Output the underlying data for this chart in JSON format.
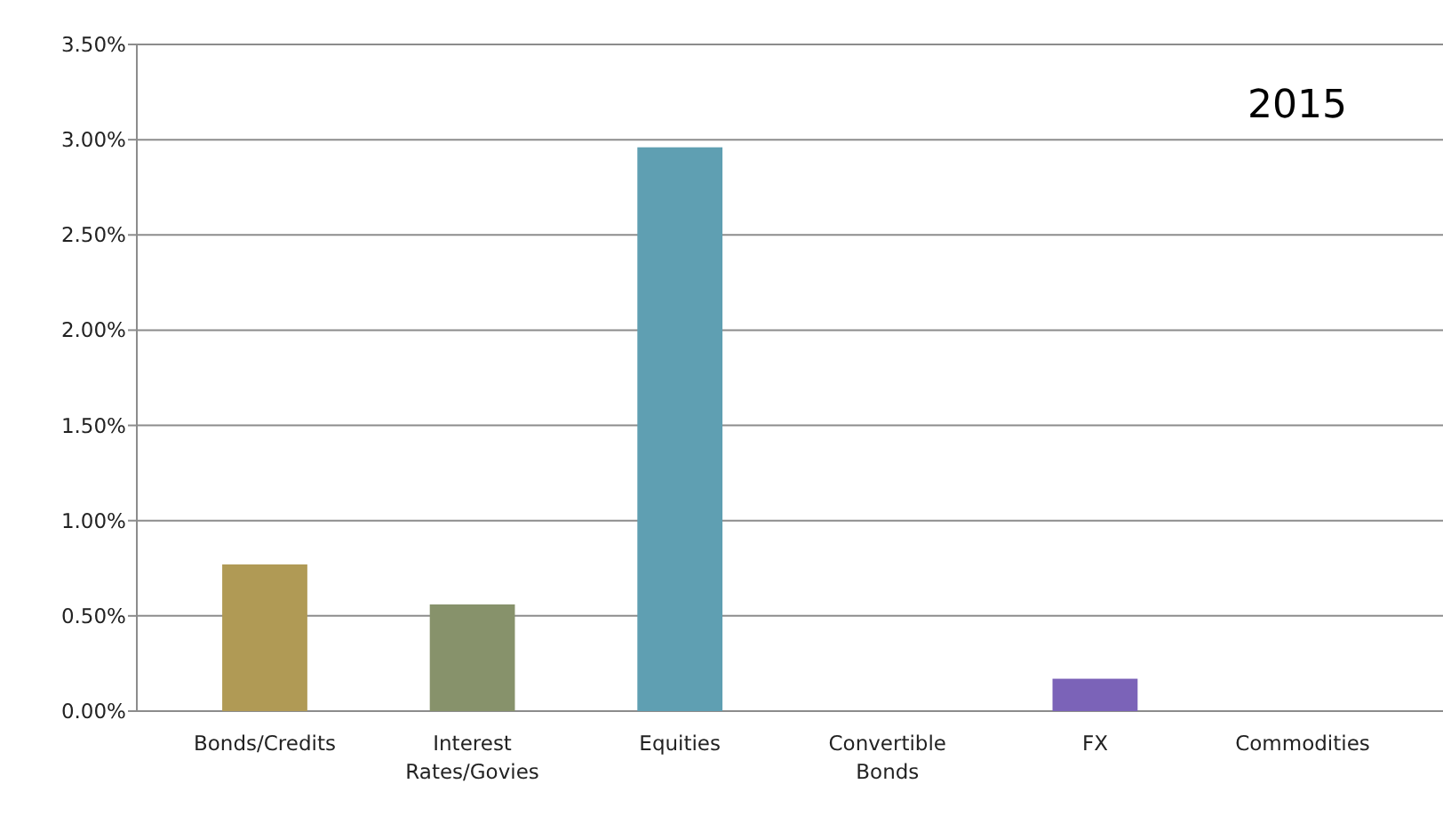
{
  "chart_data": {
    "type": "bar",
    "title": "2015",
    "categories": [
      "Bonds/Credits",
      "Interest Rates/Govies",
      "Equities",
      "Convertible Bonds",
      "FX",
      "Commodities"
    ],
    "values": [
      0.77,
      0.56,
      2.96,
      0,
      0.17,
      0
    ],
    "colors": [
      "#b09a55",
      "#87926b",
      "#5f9fb2",
      "#c0504d",
      "#7b63b8",
      "#f79646"
    ],
    "ylim": [
      0,
      3.5
    ],
    "yticks": [
      {
        "value": 0,
        "label": "0.00%"
      },
      {
        "value": 0.5,
        "label": "0.50%"
      },
      {
        "value": 1,
        "label": "1.00%"
      },
      {
        "value": 1.5,
        "label": "1.50%"
      },
      {
        "value": 2,
        "label": "2.00%"
      },
      {
        "value": 2.5,
        "label": "2.50%"
      },
      {
        "value": 3,
        "label": "3.00%"
      },
      {
        "value": 3.5,
        "label": "3.50%"
      }
    ],
    "grid": "y"
  }
}
